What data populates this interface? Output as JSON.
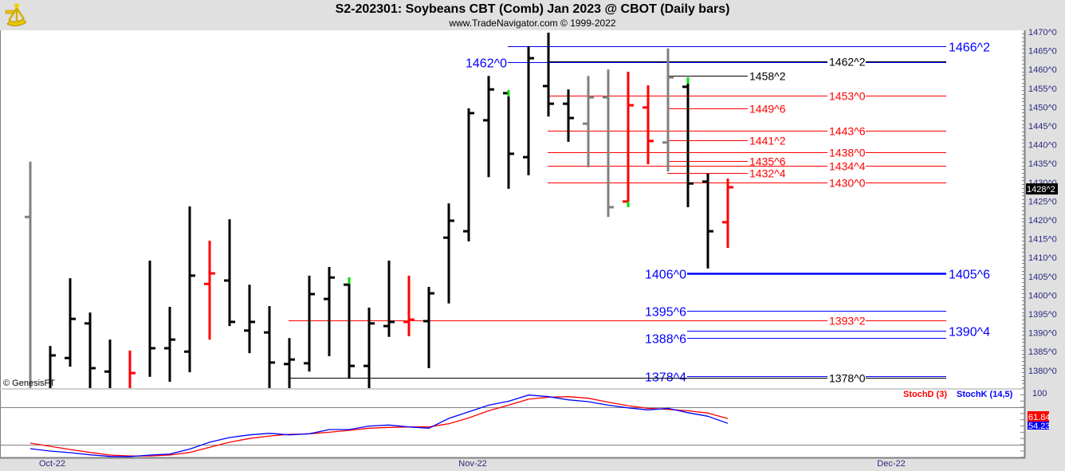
{
  "header": {
    "title": "S2-202301:  Soybeans CBT (Comb) Jan 2023 @ CBOT  (Daily bars)",
    "subtitle": "www.TradeNavigator.com © 1999-2022",
    "logo_icon": "sextant-logo-icon"
  },
  "copyright": "© GenesisFT",
  "colors": {
    "up": "#000000",
    "down": "#ff0000",
    "neutral": "#808080",
    "marker": "#00e000",
    "blue": "#0000ff",
    "red": "#ff0000",
    "black": "#000000"
  },
  "chart_data": [
    {
      "type": "ohlc",
      "panel": "price",
      "ylim": [
        1375.3,
        1470
      ],
      "y_ticks": [
        "1470^0",
        "1465^0",
        "1460^0",
        "1455^0",
        "1450^0",
        "1445^0",
        "1440^0",
        "1435^0",
        "1430^0",
        "1425^0",
        "1420^0",
        "1415^0",
        "1410^0",
        "1405^0",
        "1400^0",
        "1395^0",
        "1390^0",
        "1385^0",
        "1380^0"
      ],
      "y_tick_values": [
        1470,
        1465,
        1460,
        1455,
        1450,
        1445,
        1440,
        1435,
        1430,
        1425,
        1420,
        1415,
        1410,
        1405,
        1400,
        1395,
        1390,
        1385,
        1380
      ],
      "last_price_label": "1428^2",
      "last_price": 1428.25,
      "x_labels": [
        {
          "label": "Oct-22",
          "bar": 1.1
        },
        {
          "label": "Nov-22",
          "bar": 22.2
        },
        {
          "label": "Dec-22",
          "bar": 43.2
        }
      ],
      "bars": [
        {
          "o": 1420.8,
          "h": 1435.5,
          "l": 1375.3,
          "c": null,
          "color": "neutral"
        },
        {
          "o": null,
          "h": 1386.5,
          "l": 1375.3,
          "c": 1384,
          "color": "up"
        },
        {
          "o": 1383.3,
          "h": 1404.5,
          "l": 1381,
          "c": 1393.7,
          "color": "up"
        },
        {
          "o": 1392.5,
          "h": 1395.4,
          "l": 1375.3,
          "c": 1380.6,
          "color": "up"
        },
        {
          "o": 1379.7,
          "h": 1388.2,
          "l": 1375.3,
          "c": null,
          "color": "up"
        },
        {
          "o": null,
          "h": 1385.3,
          "l": 1375.3,
          "c": 1379.3,
          "color": "down"
        },
        {
          "o": null,
          "h": 1409.2,
          "l": 1378.3,
          "c": 1385.9,
          "color": "up"
        },
        {
          "o": 1385.9,
          "h": 1396.9,
          "l": 1377,
          "c": 1388.2,
          "color": "up"
        },
        {
          "o": 1385,
          "h": 1423.6,
          "l": 1379.5,
          "c": 1405.2,
          "color": "up"
        },
        {
          "o": 1403,
          "h": 1414.5,
          "l": 1388.2,
          "c": 1405.8,
          "color": "down"
        },
        {
          "o": 1403.9,
          "h": 1420.2,
          "l": 1391.8,
          "c": 1392.9,
          "color": "up"
        },
        {
          "o": 1390.6,
          "h": 1402.8,
          "l": 1384.6,
          "c": 1392.9,
          "color": "up"
        },
        {
          "o": 1390.1,
          "h": 1397.1,
          "l": 1375.3,
          "c": 1382.1,
          "color": "up"
        },
        {
          "o": 1381.7,
          "h": 1388.6,
          "l": 1375.3,
          "c": 1382.9,
          "color": "up"
        },
        {
          "o": 1381.9,
          "h": 1405.2,
          "l": 1379.7,
          "c": 1400.3,
          "color": "up"
        },
        {
          "o": 1399,
          "h": 1407.5,
          "l": 1383.8,
          "c": 1404.7,
          "color": "up"
        },
        {
          "o": 1402.8,
          "h": 1404.7,
          "l": 1377.8,
          "c": 1381.2,
          "color": "up",
          "marker": "top"
        },
        {
          "o": 1381.2,
          "h": 1396.7,
          "l": 1375.3,
          "c": 1392.5,
          "color": "up"
        },
        {
          "o": 1391.8,
          "h": 1409.2,
          "l": 1388.9,
          "c": 1392.9,
          "color": "up"
        },
        {
          "o": 1392.9,
          "h": 1405.2,
          "l": 1389.1,
          "c": 1393.5,
          "color": "down"
        },
        {
          "o": 1393.1,
          "h": 1402.2,
          "l": 1380.6,
          "c": 1400.5,
          "color": "up"
        },
        {
          "o": 1415.3,
          "h": 1424.4,
          "l": 1397.8,
          "c": 1419.8,
          "color": "up"
        },
        {
          "o": 1417,
          "h": 1449.7,
          "l": 1414.3,
          "c": 1448.4,
          "color": "up"
        },
        {
          "o": 1446.5,
          "h": 1458.3,
          "l": 1431.4,
          "c": 1454.7,
          "color": "up"
        },
        {
          "o": 1453.7,
          "h": 1454.5,
          "l": 1428.3,
          "c": 1437.6,
          "color": "up",
          "marker": "top"
        },
        {
          "o": 1436.7,
          "h": 1466.2,
          "l": 1431.9,
          "c": 1463,
          "color": "up"
        },
        {
          "o": 1455.6,
          "h": 1469.8,
          "l": 1447.5,
          "c": 1450.9,
          "color": "up"
        },
        {
          "o": 1450.9,
          "h": 1454.7,
          "l": 1440.8,
          "c": 1447.1,
          "color": "up"
        },
        {
          "o": 1445.6,
          "h": 1458.3,
          "l": 1434,
          "c": 1452.6,
          "color": "neutral"
        },
        {
          "o": 1452.6,
          "h": 1460,
          "l": 1420.8,
          "c": 1423.4,
          "color": "neutral"
        },
        {
          "o": 1424.9,
          "h": 1459.4,
          "l": 1423.4,
          "c": 1450.5,
          "color": "down",
          "marker": "bottom"
        },
        {
          "o": 1449.9,
          "h": 1455.8,
          "l": 1434.8,
          "c": 1441,
          "color": "down"
        },
        {
          "o": 1440.6,
          "h": 1465.6,
          "l": 1432.9,
          "c": 1457.9,
          "color": "neutral"
        },
        {
          "o": 1455.4,
          "h": 1457.9,
          "l": 1423.4,
          "c": 1429.7,
          "color": "up",
          "marker": "top"
        },
        {
          "o": 1430.2,
          "h": 1432.3,
          "l": 1407.1,
          "c": 1417,
          "color": "up"
        },
        {
          "o": 1419.4,
          "h": 1431,
          "l": 1412.6,
          "c": 1428.7,
          "color": "down"
        }
      ],
      "levels": [
        {
          "price": 1466.25,
          "color": "blue",
          "start_bar": 24,
          "span": "long",
          "label": "1466^2",
          "label_pos": "right"
        },
        {
          "price": 1462.0,
          "color": "blue",
          "start_bar": 24,
          "span": "long",
          "label": "1462^0",
          "label_pos": "left"
        },
        {
          "price": 1462.25,
          "color": "black",
          "start_bar": 26,
          "span": "long",
          "label": "1462^2",
          "label_pos": "mid"
        },
        {
          "price": 1458.25,
          "color": "black",
          "start_bar": 32,
          "span": "short",
          "label": "1458^2",
          "label_pos": "short"
        },
        {
          "price": 1453.0,
          "color": "red",
          "start_bar": 26,
          "span": "long",
          "label": "1453^0",
          "label_pos": "mid"
        },
        {
          "price": 1449.75,
          "color": "red",
          "start_bar": 32,
          "span": "short",
          "label": "1449^6",
          "label_pos": "short"
        },
        {
          "price": 1443.75,
          "color": "red",
          "start_bar": 26,
          "span": "long",
          "label": "1443^6",
          "label_pos": "mid"
        },
        {
          "price": 1441.25,
          "color": "red",
          "start_bar": 32,
          "span": "short",
          "label": "1441^2",
          "label_pos": "short"
        },
        {
          "price": 1438.0,
          "color": "red",
          "start_bar": 26,
          "span": "long",
          "label": "1438^0",
          "label_pos": "mid"
        },
        {
          "price": 1435.75,
          "color": "red",
          "start_bar": 32,
          "span": "short",
          "label": "1435^6",
          "label_pos": "short"
        },
        {
          "price": 1434.5,
          "color": "red",
          "start_bar": 26,
          "span": "long",
          "label": "1434^4",
          "label_pos": "mid"
        },
        {
          "price": 1432.5,
          "color": "red",
          "start_bar": 32,
          "span": "short",
          "label": "1432^4",
          "label_pos": "short"
        },
        {
          "price": 1430.0,
          "color": "red",
          "start_bar": 26,
          "span": "long",
          "label": "1430^0",
          "label_pos": "mid"
        },
        {
          "price": 1405.75,
          "color": "blue",
          "start_bar": 33,
          "span": "long",
          "label": "1406^0",
          "label_pos": "left",
          "label2": "1405^6",
          "thick": true
        },
        {
          "price": 1395.75,
          "color": "blue",
          "start_bar": 33,
          "span": "long",
          "label": "1395^6",
          "label_pos": "left"
        },
        {
          "price": 1393.25,
          "color": "red",
          "start_bar": 13,
          "span": "long",
          "label": "1393^2",
          "label_pos": "mid"
        },
        {
          "price": 1390.5,
          "color": "blue",
          "start_bar": 33,
          "span": "long",
          "label": "1390^4",
          "label_pos": "right"
        },
        {
          "price": 1388.75,
          "color": "blue",
          "start_bar": 33,
          "span": "long",
          "label": "1388^6",
          "label_pos": "left"
        },
        {
          "price": 1378.5,
          "color": "blue",
          "start_bar": 33,
          "span": "long",
          "label": "1378^4",
          "label_pos": "left"
        },
        {
          "price": 1378.0,
          "color": "black",
          "start_bar": 13,
          "span": "long",
          "label": "1378^0",
          "label_pos": "mid"
        }
      ]
    },
    {
      "type": "line",
      "panel": "stochastic",
      "ylim": [
        0,
        100
      ],
      "y_tick_label": "100",
      "reference_lines": [
        80,
        20
      ],
      "series": [
        {
          "name": "StochD (3)",
          "color": "red",
          "last_label": "61.84",
          "values": [
            22.6,
            17.5,
            12.4,
            7.7,
            3.4,
            2,
            2,
            3.4,
            7.7,
            16,
            24,
            30,
            34,
            36.6,
            37.5,
            40,
            43,
            46.5,
            47.8,
            48.5,
            48.5,
            53.6,
            63,
            74.4,
            83.4,
            93,
            96.2,
            97,
            94.5,
            88.3,
            82.5,
            78.3,
            76.6,
            74.4,
            70.8,
            61.84
          ]
        },
        {
          "name": "StochK (14,5)",
          "color": "blue",
          "last_label": "54.23",
          "values": [
            13.7,
            9.8,
            7.3,
            3.8,
            1.3,
            1,
            3.4,
            5,
            13,
            24,
            31.5,
            35.8,
            38.3,
            35.8,
            37.5,
            44.3,
            44.3,
            50,
            51.6,
            48.5,
            46.5,
            62.2,
            72.8,
            83.4,
            89.6,
            99.6,
            97,
            92,
            89,
            83.4,
            79,
            75.8,
            78.3,
            71.4,
            65.6,
            54.23
          ]
        }
      ]
    }
  ]
}
